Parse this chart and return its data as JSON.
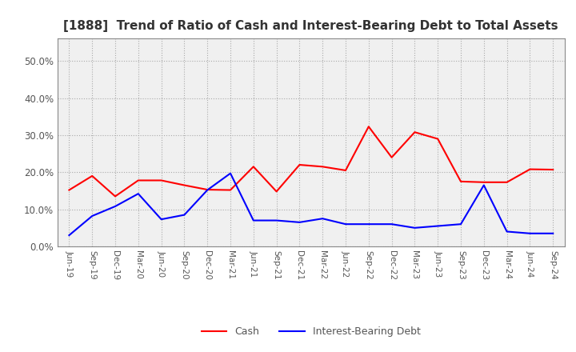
{
  "title": "[1888]  Trend of Ratio of Cash and Interest-Bearing Debt to Total Assets",
  "x_labels": [
    "Jun-19",
    "Sep-19",
    "Dec-19",
    "Mar-20",
    "Jun-20",
    "Sep-20",
    "Dec-20",
    "Mar-21",
    "Jun-21",
    "Sep-21",
    "Dec-21",
    "Mar-22",
    "Jun-22",
    "Sep-22",
    "Dec-22",
    "Mar-23",
    "Jun-23",
    "Sep-23",
    "Dec-23",
    "Mar-24",
    "Jun-24",
    "Sep-24"
  ],
  "cash": [
    0.152,
    0.19,
    0.135,
    0.178,
    0.178,
    0.165,
    0.153,
    0.152,
    0.215,
    0.148,
    0.22,
    0.215,
    0.205,
    0.323,
    0.24,
    0.308,
    0.29,
    0.175,
    0.173,
    0.173,
    0.208,
    0.207
  ],
  "ibd": [
    0.03,
    0.082,
    0.108,
    0.142,
    0.073,
    0.085,
    0.152,
    0.197,
    0.07,
    0.07,
    0.065,
    0.075,
    0.06,
    0.06,
    0.06,
    0.05,
    0.055,
    0.06,
    0.165,
    0.04,
    0.035,
    0.035
  ],
  "cash_color": "#ff0000",
  "ibd_color": "#0000ff",
  "ylim": [
    0.0,
    0.56
  ],
  "yticks": [
    0.0,
    0.1,
    0.2,
    0.3,
    0.4,
    0.5
  ],
  "background_color": "#ffffff",
  "plot_bg_color": "#f0f0f0",
  "grid_color": "#aaaaaa",
  "title_fontsize": 11,
  "title_color": "#333333",
  "tick_color": "#555555",
  "spine_color": "#888888",
  "legend_cash": "Cash",
  "legend_ibd": "Interest-Bearing Debt",
  "line_width": 1.5
}
